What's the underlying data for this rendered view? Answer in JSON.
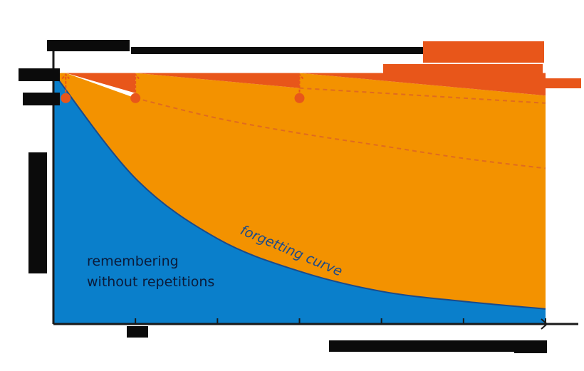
{
  "colors": {
    "blue": "#0a7fcb",
    "orange": "#f39200",
    "dark_orange": "#e8561a",
    "axis": "#1a1a1a",
    "curve": "#1a4a8a",
    "dashed": "#e06b1f"
  },
  "chart_data": {
    "type": "area",
    "title": "",
    "xlabel": "",
    "ylabel": "",
    "xlim": [
      0,
      6
    ],
    "ylim": [
      0,
      100
    ],
    "review_points": [
      {
        "x": 0.15,
        "y_before": 90,
        "y_after": 100
      },
      {
        "x": 1.0,
        "y_before": 90,
        "y_after": 100
      },
      {
        "x": 3.0,
        "y_before": 90,
        "y_after": 100
      }
    ],
    "series": [
      {
        "values_x": [
          0,
          1,
          2,
          3,
          4,
          5,
          6
        ],
        "values_y": [
          100,
          58,
          34,
          21,
          13,
          9,
          6
        ]
      },
      {
        "values_x": [
          0.15,
          1,
          2,
          3,
          4,
          5,
          6
        ],
        "values_y": [
          100,
          90,
          82,
          76,
          71,
          66,
          62
        ]
      },
      {
        "values_x": [
          1,
          2,
          3,
          4,
          5,
          6
        ],
        "values_y": [
          100,
          97,
          94,
          92,
          90,
          88
        ]
      },
      {
        "values_x": [
          3,
          4,
          5,
          6
        ],
        "values_y": [
          100,
          97,
          94,
          91
        ]
      }
    ],
    "annotations": {
      "blue_area_label_line1": "remembering",
      "blue_area_label_line2": "without repetitions",
      "curve_label": "forgetting curve"
    }
  }
}
